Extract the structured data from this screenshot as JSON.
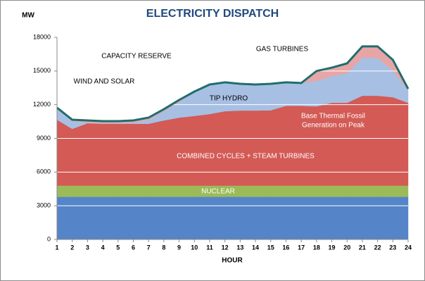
{
  "chart_data": {
    "type": "stacked_area",
    "title": "ELECTRICITY DISPATCH",
    "y_label": "MW",
    "x_label": "HOUR",
    "x": [
      1,
      2,
      3,
      4,
      5,
      6,
      7,
      8,
      9,
      10,
      11,
      12,
      13,
      14,
      15,
      16,
      17,
      18,
      19,
      20,
      21,
      22,
      23,
      24
    ],
    "xlim": [
      1,
      24
    ],
    "xticks": [
      1,
      2,
      3,
      4,
      5,
      6,
      7,
      8,
      9,
      10,
      11,
      12,
      13,
      14,
      15,
      16,
      17,
      18,
      19,
      20,
      21,
      22,
      23,
      24
    ],
    "ylim": [
      0,
      18000
    ],
    "yticks": [
      0,
      3000,
      6000,
      9000,
      12000,
      15000,
      18000
    ],
    "grid": true,
    "grid_color": "#ffffff",
    "outline_color": "#1f6e6e",
    "series": [
      {
        "color": "#5585c8",
        "values": [
          3800,
          3800,
          3800,
          3800,
          3800,
          3800,
          3800,
          3800,
          3800,
          3800,
          3800,
          3800,
          3800,
          3800,
          3800,
          3800,
          3800,
          3800,
          3800,
          3800,
          3800,
          3800,
          3800,
          3800
        ]
      },
      {
        "color": "#9bbb59",
        "values": [
          1000,
          1000,
          1000,
          1000,
          1000,
          1000,
          1000,
          1000,
          1000,
          1000,
          1000,
          1000,
          1000,
          1000,
          1000,
          1000,
          1000,
          1000,
          1000,
          1000,
          1000,
          1000,
          1000,
          1000
        ]
      },
      {
        "color": "#d35a55",
        "values": [
          4500,
          4500,
          4500,
          4500,
          4500,
          4500,
          4500,
          4500,
          4500,
          4500,
          4500,
          4500,
          4500,
          4500,
          4500,
          4500,
          4500,
          4500,
          4500,
          4500,
          4500,
          4500,
          4500,
          4500
        ]
      },
      {
        "color": "#d35a55",
        "values": [
          1360,
          550,
          1050,
          1000,
          1000,
          1000,
          1000,
          1300,
          1550,
          1700,
          1870,
          2120,
          2180,
          2180,
          2200,
          2600,
          2600,
          2550,
          2870,
          2870,
          3500,
          3500,
          3370,
          2870
        ]
      },
      {
        "color": "#a7bfe3",
        "values": [
          940,
          690,
          50,
          50,
          50,
          100,
          360,
          820,
          1380,
          2170,
          2630,
          2570,
          2380,
          2320,
          2360,
          2090,
          2030,
          2270,
          2380,
          2630,
          3380,
          3380,
          2390,
          1130
        ]
      },
      {
        "color": "#e8a5a5",
        "values": [
          130,
          120,
          200,
          190,
          190,
          200,
          190,
          180,
          190,
          0,
          0,
          0,
          0,
          0,
          0,
          0,
          0,
          880,
          750,
          880,
          1010,
          1010,
          940,
          120
        ]
      }
    ],
    "annotations": [
      "CAPACITY RESERVE",
      "GAS TURBINES",
      "WIND AND SOLAR",
      "TIP HYDRO",
      "Base Thermal  Fossil",
      "Generation on Peak",
      "COMBINED CYCLES + STEAM TURBINES",
      "NUCLEAR"
    ]
  }
}
